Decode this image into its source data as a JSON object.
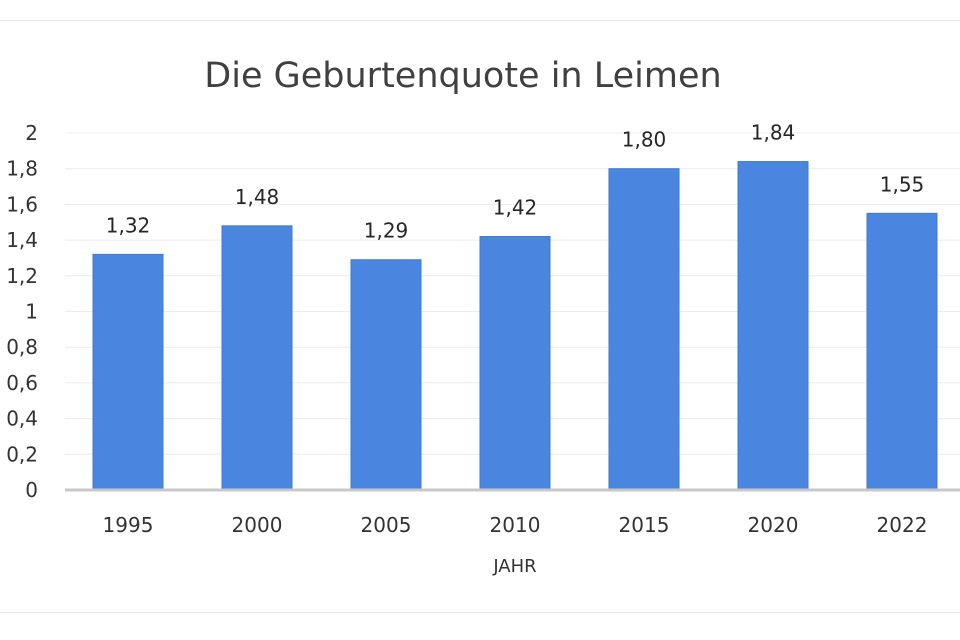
{
  "chart_data": {
    "type": "bar",
    "title": "Die Geburtenquote in Leimen",
    "xlabel": "JAHR",
    "ylabel": "",
    "categories": [
      "1995",
      "2000",
      "2005",
      "2010",
      "2015",
      "2020",
      "2022"
    ],
    "values": [
      1.32,
      1.48,
      1.29,
      1.42,
      1.8,
      1.84,
      1.55
    ],
    "data_labels": [
      "1,32",
      "1,48",
      "1,29",
      "1,42",
      "1,80",
      "1,84",
      "1,55"
    ],
    "yticks": [
      "0",
      "0,2",
      "0,4",
      "0,6",
      "0,8",
      "1",
      "1,2",
      "1,4",
      "1,6",
      "1,8",
      "2"
    ],
    "ylim": [
      0,
      2
    ],
    "grid": true,
    "legend": "none",
    "colors": {
      "bar": "#4a86e0",
      "bar_edge": "#3f79d0",
      "grid": "#ececec",
      "axis": "#c8c8c8"
    }
  }
}
